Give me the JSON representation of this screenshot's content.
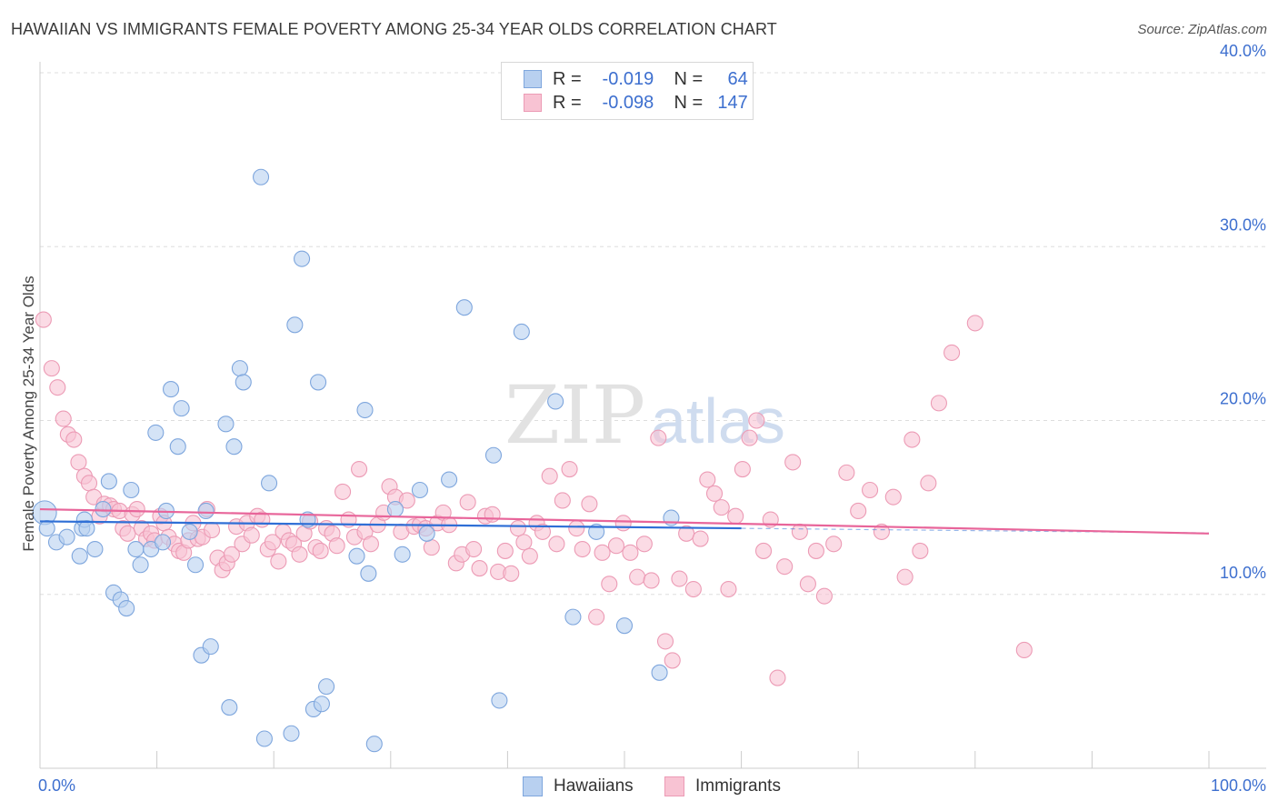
{
  "title": "HAWAIIAN VS IMMIGRANTS FEMALE POVERTY AMONG 25-34 YEAR OLDS CORRELATION CHART",
  "source": "Source: ZipAtlas.com",
  "watermark": {
    "zip": "ZIP",
    "atlas": "atlas"
  },
  "legend": {
    "r_label": "R =",
    "n_label": "N =",
    "hawaiians": {
      "r": "-0.019",
      "n": "64"
    },
    "immigrants": {
      "r": "-0.098",
      "n": "147"
    }
  },
  "colors": {
    "hawaiians_fill": "#b8d0f0",
    "hawaiians_stroke": "#7ea6dd",
    "hawaiians_line": "#2f6fd6",
    "immigrants_fill": "#f8c3d3",
    "immigrants_stroke": "#ec9bb5",
    "immigrants_line": "#e8659a",
    "axis_text": "#3d6fcf",
    "grid": "#dddddd"
  },
  "chart_data": {
    "type": "scatter",
    "title": "HAWAIIAN VS IMMIGRANTS FEMALE POVERTY AMONG 25-34 YEAR OLDS CORRELATION CHART",
    "xlabel": "",
    "ylabel": "Female Poverty Among 25-34 Year Olds",
    "xlim": [
      0,
      100
    ],
    "ylim": [
      0,
      40
    ],
    "x_tick_labels": [
      "0.0%",
      "100.0%"
    ],
    "y_ticks": [
      10,
      20,
      30,
      40
    ],
    "y_tick_labels": [
      "10.0%",
      "20.0%",
      "30.0%",
      "40.0%"
    ],
    "grid": true,
    "legend_position": "bottom",
    "series": [
      {
        "name": "Hawaiians",
        "trend": {
          "x": [
            0,
            60
          ],
          "y": [
            14.2,
            13.8
          ]
        },
        "points": [
          [
            0.4,
            14.7
          ],
          [
            0.6,
            13.8
          ],
          [
            1.4,
            13.0
          ],
          [
            2.3,
            13.3
          ],
          [
            3.4,
            12.2
          ],
          [
            3.6,
            13.8
          ],
          [
            3.8,
            14.3
          ],
          [
            4.0,
            13.8
          ],
          [
            4.7,
            12.6
          ],
          [
            5.4,
            14.9
          ],
          [
            5.9,
            16.5
          ],
          [
            6.3,
            10.1
          ],
          [
            6.9,
            9.7
          ],
          [
            7.4,
            9.2
          ],
          [
            7.8,
            16.0
          ],
          [
            8.2,
            12.6
          ],
          [
            8.6,
            11.7
          ],
          [
            9.5,
            12.6
          ],
          [
            9.9,
            19.3
          ],
          [
            10.5,
            13.0
          ],
          [
            10.8,
            14.8
          ],
          [
            11.2,
            21.8
          ],
          [
            11.8,
            18.5
          ],
          [
            12.1,
            20.7
          ],
          [
            12.8,
            13.6
          ],
          [
            13.3,
            11.7
          ],
          [
            13.8,
            6.5
          ],
          [
            14.2,
            14.8
          ],
          [
            14.6,
            7.0
          ],
          [
            15.9,
            19.8
          ],
          [
            16.2,
            3.5
          ],
          [
            16.6,
            18.5
          ],
          [
            17.1,
            23.0
          ],
          [
            17.4,
            22.2
          ],
          [
            18.9,
            34.0
          ],
          [
            19.2,
            1.7
          ],
          [
            19.6,
            16.4
          ],
          [
            21.5,
            2.0
          ],
          [
            21.8,
            25.5
          ],
          [
            22.4,
            29.3
          ],
          [
            22.9,
            14.3
          ],
          [
            23.4,
            3.4
          ],
          [
            23.8,
            22.2
          ],
          [
            24.1,
            3.7
          ],
          [
            24.5,
            4.7
          ],
          [
            27.1,
            12.2
          ],
          [
            27.8,
            20.6
          ],
          [
            28.1,
            11.2
          ],
          [
            28.6,
            1.4
          ],
          [
            30.4,
            14.9
          ],
          [
            31.0,
            12.3
          ],
          [
            32.5,
            16.0
          ],
          [
            33.1,
            13.5
          ],
          [
            35.0,
            16.6
          ],
          [
            36.3,
            26.5
          ],
          [
            38.8,
            18.0
          ],
          [
            39.3,
            3.9
          ],
          [
            41.2,
            25.1
          ],
          [
            44.1,
            21.1
          ],
          [
            45.6,
            8.7
          ],
          [
            47.6,
            13.6
          ],
          [
            50.0,
            8.2
          ],
          [
            53.0,
            5.5
          ],
          [
            54.0,
            14.4
          ]
        ]
      },
      {
        "name": "Immigrants",
        "trend": {
          "x": [
            0,
            100
          ],
          "y": [
            14.9,
            13.5
          ]
        },
        "points": [
          [
            0.3,
            25.8
          ],
          [
            1.0,
            23.0
          ],
          [
            1.5,
            21.9
          ],
          [
            2.0,
            20.1
          ],
          [
            2.4,
            19.2
          ],
          [
            2.9,
            18.9
          ],
          [
            3.3,
            17.6
          ],
          [
            3.8,
            16.8
          ],
          [
            4.2,
            16.4
          ],
          [
            4.6,
            15.6
          ],
          [
            5.1,
            14.5
          ],
          [
            5.5,
            15.2
          ],
          [
            6.0,
            15.1
          ],
          [
            6.3,
            14.9
          ],
          [
            6.8,
            14.8
          ],
          [
            7.1,
            13.8
          ],
          [
            7.5,
            13.5
          ],
          [
            7.9,
            14.6
          ],
          [
            8.3,
            14.9
          ],
          [
            8.7,
            13.8
          ],
          [
            9.1,
            13.2
          ],
          [
            9.5,
            13.5
          ],
          [
            9.8,
            13.1
          ],
          [
            10.3,
            14.5
          ],
          [
            10.6,
            14.1
          ],
          [
            11.0,
            13.3
          ],
          [
            11.5,
            12.9
          ],
          [
            11.9,
            12.5
          ],
          [
            12.3,
            12.4
          ],
          [
            12.7,
            13.1
          ],
          [
            13.1,
            14.1
          ],
          [
            13.5,
            13.2
          ],
          [
            13.9,
            13.3
          ],
          [
            14.3,
            14.9
          ],
          [
            14.7,
            13.7
          ],
          [
            15.2,
            12.1
          ],
          [
            15.6,
            11.4
          ],
          [
            16.0,
            11.8
          ],
          [
            16.4,
            12.3
          ],
          [
            16.8,
            13.9
          ],
          [
            17.3,
            12.9
          ],
          [
            17.7,
            14.1
          ],
          [
            18.1,
            13.4
          ],
          [
            18.6,
            14.5
          ],
          [
            19.0,
            14.3
          ],
          [
            19.5,
            12.6
          ],
          [
            19.9,
            13.0
          ],
          [
            20.4,
            11.9
          ],
          [
            20.8,
            13.6
          ],
          [
            21.3,
            13.1
          ],
          [
            21.7,
            12.9
          ],
          [
            22.2,
            12.3
          ],
          [
            22.6,
            13.5
          ],
          [
            23.1,
            14.2
          ],
          [
            23.6,
            12.7
          ],
          [
            24.0,
            12.5
          ],
          [
            24.5,
            13.8
          ],
          [
            25.0,
            13.5
          ],
          [
            25.4,
            12.8
          ],
          [
            25.9,
            15.9
          ],
          [
            26.4,
            14.3
          ],
          [
            26.9,
            13.3
          ],
          [
            27.3,
            17.2
          ],
          [
            27.8,
            13.6
          ],
          [
            28.3,
            12.9
          ],
          [
            28.9,
            14.0
          ],
          [
            29.4,
            14.7
          ],
          [
            29.9,
            16.2
          ],
          [
            30.4,
            15.6
          ],
          [
            30.9,
            13.6
          ],
          [
            31.4,
            15.4
          ],
          [
            32.0,
            13.9
          ],
          [
            32.5,
            14.0
          ],
          [
            33.0,
            13.8
          ],
          [
            33.5,
            12.7
          ],
          [
            34.0,
            14.1
          ],
          [
            34.5,
            14.7
          ],
          [
            35.0,
            14.0
          ],
          [
            35.6,
            11.8
          ],
          [
            36.1,
            12.3
          ],
          [
            36.6,
            15.3
          ],
          [
            37.1,
            12.6
          ],
          [
            37.6,
            11.5
          ],
          [
            38.1,
            14.5
          ],
          [
            38.7,
            14.6
          ],
          [
            39.2,
            11.3
          ],
          [
            39.8,
            12.5
          ],
          [
            40.3,
            11.2
          ],
          [
            40.9,
            13.8
          ],
          [
            41.4,
            13.0
          ],
          [
            41.9,
            12.2
          ],
          [
            42.5,
            14.1
          ],
          [
            43.0,
            13.6
          ],
          [
            43.6,
            16.8
          ],
          [
            44.2,
            12.9
          ],
          [
            44.7,
            15.4
          ],
          [
            45.3,
            17.2
          ],
          [
            45.9,
            13.8
          ],
          [
            46.4,
            12.6
          ],
          [
            47.0,
            15.2
          ],
          [
            47.6,
            8.7
          ],
          [
            48.1,
            12.4
          ],
          [
            48.7,
            10.6
          ],
          [
            49.3,
            12.8
          ],
          [
            49.9,
            14.1
          ],
          [
            50.5,
            12.4
          ],
          [
            51.1,
            11.0
          ],
          [
            51.7,
            12.9
          ],
          [
            52.3,
            10.8
          ],
          [
            52.9,
            19.0
          ],
          [
            53.5,
            7.3
          ],
          [
            54.1,
            6.2
          ],
          [
            54.7,
            10.9
          ],
          [
            55.3,
            13.5
          ],
          [
            55.9,
            10.3
          ],
          [
            56.5,
            13.2
          ],
          [
            57.1,
            16.6
          ],
          [
            57.7,
            15.8
          ],
          [
            58.3,
            15.0
          ],
          [
            58.9,
            10.3
          ],
          [
            59.5,
            14.5
          ],
          [
            60.1,
            17.2
          ],
          [
            60.7,
            19.0
          ],
          [
            61.3,
            20.0
          ],
          [
            61.9,
            12.5
          ],
          [
            62.5,
            14.3
          ],
          [
            63.1,
            5.2
          ],
          [
            63.7,
            11.6
          ],
          [
            64.4,
            17.6
          ],
          [
            65.0,
            13.6
          ],
          [
            65.7,
            10.6
          ],
          [
            66.4,
            12.5
          ],
          [
            67.1,
            9.9
          ],
          [
            67.9,
            12.9
          ],
          [
            69.0,
            17.0
          ],
          [
            70.0,
            14.8
          ],
          [
            71.0,
            16.0
          ],
          [
            72.0,
            13.6
          ],
          [
            73.0,
            15.6
          ],
          [
            74.0,
            11.0
          ],
          [
            74.6,
            18.9
          ],
          [
            75.3,
            12.5
          ],
          [
            76.0,
            16.4
          ],
          [
            76.9,
            21.0
          ],
          [
            78.0,
            23.9
          ],
          [
            80.0,
            25.6
          ],
          [
            84.2,
            6.8
          ]
        ]
      }
    ]
  }
}
